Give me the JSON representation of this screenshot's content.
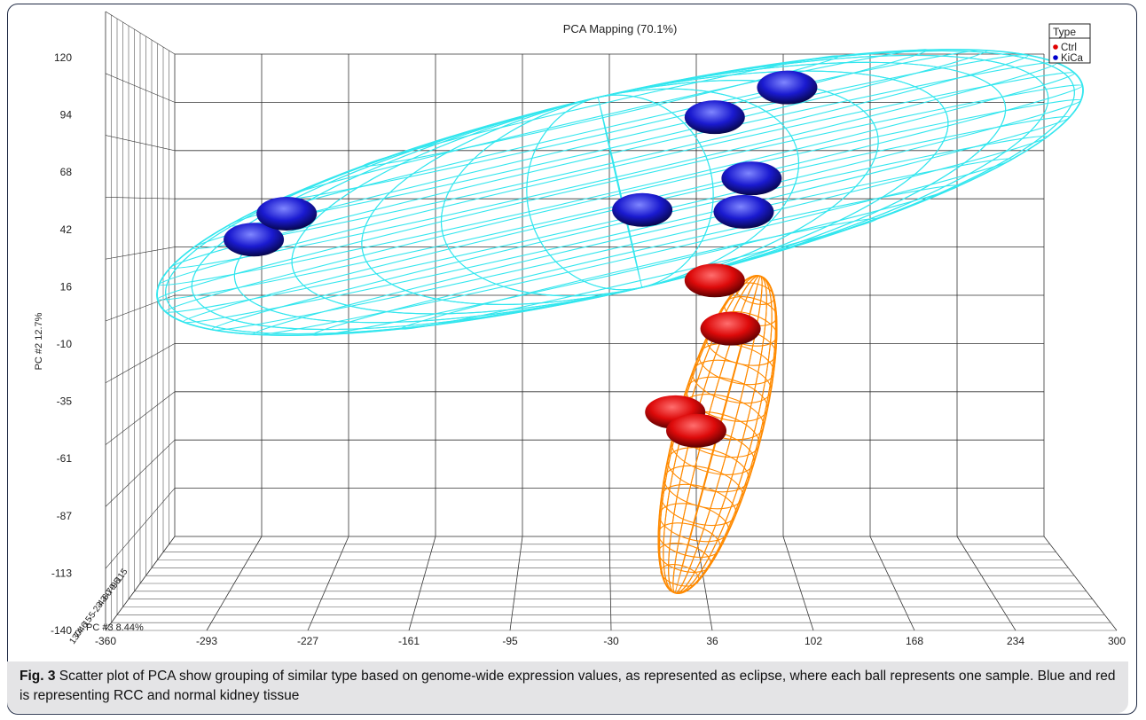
{
  "chart_data": {
    "type": "scatter",
    "title": "PCA Mapping (70.1%)",
    "ylabel": "PC #2 12.7%",
    "depth_axis_label": "PC #3 8.44%",
    "xlim": [
      -360,
      300
    ],
    "ylim": [
      -140,
      120
    ],
    "x_ticks": [
      "-360",
      "-293",
      "-227",
      "-161",
      "-95",
      "-30",
      "36",
      "102",
      "168",
      "234",
      "300"
    ],
    "y_ticks": [
      "120",
      "94",
      "68",
      "42",
      "16",
      "-10",
      "-35",
      "-61",
      "-87",
      "-113",
      "-140"
    ],
    "z_ticks": [
      "130",
      "74",
      "46",
      "15",
      "-5",
      "-23",
      "-43",
      "-60",
      "-79",
      "-95",
      "-115"
    ],
    "legend": {
      "title": "Type",
      "entries": [
        {
          "label": "Ctrl",
          "color": "#e00000"
        },
        {
          "label": "KiCa",
          "color": "#0000cc"
        }
      ],
      "position": "top-right"
    },
    "series": [
      {
        "name": "KiCa",
        "color": "#1010c0",
        "ellipse_color": "#33e6ee",
        "points": [
          {
            "x": -300,
            "y": 20
          },
          {
            "x": -275,
            "y": 34
          },
          {
            "x": -5,
            "y": 36
          },
          {
            "x": 50,
            "y": 86
          },
          {
            "x": 78,
            "y": 53
          },
          {
            "x": 72,
            "y": 35
          },
          {
            "x": 105,
            "y": 102
          }
        ]
      },
      {
        "name": "Ctrl",
        "color": "#e01010",
        "ellipse_color": "#ff8a00",
        "points": [
          {
            "x": 50,
            "y": -2
          },
          {
            "x": 62,
            "y": -28
          },
          {
            "x": 20,
            "y": -73
          },
          {
            "x": 36,
            "y": -83
          }
        ]
      }
    ],
    "grid": true
  },
  "caption": {
    "label": "Fig. 3",
    "text": " Scatter plot of PCA show grouping of similar type based on genome-wide expression values, as represented as eclipse, where each ball represents one sample. Blue and red is representing RCC and normal kidney tissue"
  }
}
